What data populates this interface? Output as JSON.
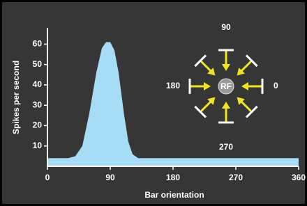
{
  "chart_data": {
    "type": "area",
    "xlabel": "Bar orientation",
    "ylabel": "Spikes per second",
    "x": [
      0,
      30,
      40,
      50,
      60,
      70,
      78,
      84,
      90,
      96,
      102,
      110,
      116,
      122,
      130,
      180,
      270,
      360
    ],
    "series": [
      {
        "color": "#a6dcf6",
        "values": [
          4,
          4,
          5,
          10,
          26,
          46,
          58,
          61,
          61,
          57,
          46,
          25,
          12,
          6,
          4,
          4,
          4,
          4
        ]
      }
    ],
    "xlim": [
      0,
      360
    ],
    "xticks": [
      0,
      90,
      180,
      270,
      360
    ],
    "ylim": [
      0,
      68
    ],
    "yticks": [
      10,
      20,
      30,
      40,
      50,
      60
    ],
    "annotations": [
      "RF",
      "90",
      "0",
      "270",
      "180"
    ]
  }
}
